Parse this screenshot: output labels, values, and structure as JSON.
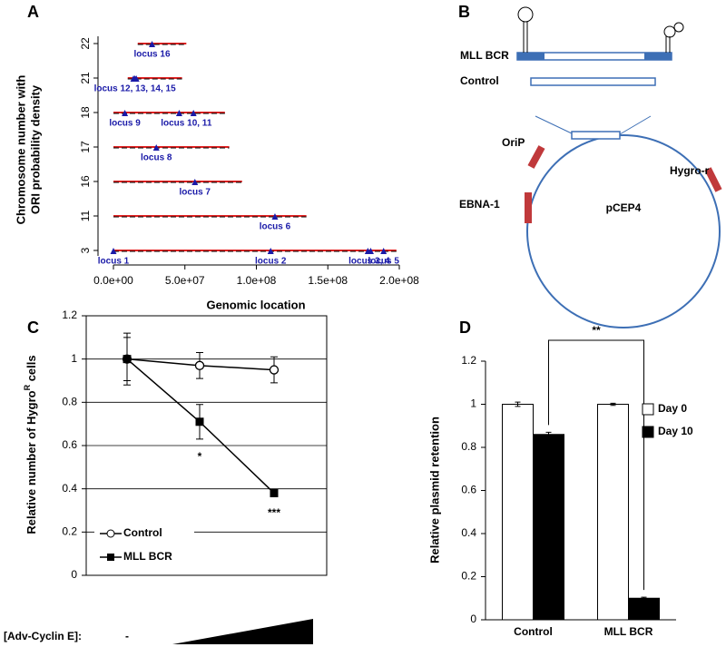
{
  "chart_data": [
    {
      "type": "scatter",
      "panel": "A",
      "y_label_lines": [
        "Chromosome number with",
        "ORI probability density"
      ],
      "x_label": "Genomic location",
      "categories": [
        "22",
        "21",
        "18",
        "17",
        "16",
        "11",
        "3"
      ],
      "chromosome_spans": [
        [
          17000000,
          51000000
        ],
        [
          10000000,
          48000000
        ],
        [
          0,
          78000000
        ],
        [
          0,
          81000000
        ],
        [
          0,
          90000000
        ],
        [
          0,
          135000000
        ],
        [
          0,
          198000000
        ]
      ],
      "trace_color": "#e02020",
      "locus_color": "#1a1aa8",
      "loci": [
        {
          "label": "locus 16",
          "chromosome": "22",
          "x": [
            27000000
          ]
        },
        {
          "label": "locus 12, 13, 14, 15",
          "chromosome": "21",
          "x": [
            14000000,
            15000000,
            16000000
          ]
        },
        {
          "label": "locus 9",
          "chromosome": "18",
          "x": [
            8000000
          ]
        },
        {
          "label": "locus 10, 11",
          "chromosome": "18",
          "x": [
            46000000,
            56000000
          ]
        },
        {
          "label": "locus 8",
          "chromosome": "17",
          "x": [
            30000000
          ]
        },
        {
          "label": "locus 7",
          "chromosome": "16",
          "x": [
            57000000
          ]
        },
        {
          "label": "locus 6",
          "chromosome": "11",
          "x": [
            113000000
          ]
        },
        {
          "label": "locus 1",
          "chromosome": "3",
          "x": [
            0
          ]
        },
        {
          "label": "locus 2",
          "chromosome": "3",
          "x": [
            110000000
          ]
        },
        {
          "label": "locus 3, 4",
          "chromosome": "3",
          "x": [
            178000000,
            180000000
          ]
        },
        {
          "label": "locus 5",
          "chromosome": "3",
          "x": [
            189000000
          ]
        }
      ],
      "xlim": [
        0,
        200000000
      ],
      "xticks": [
        {
          "value": 0,
          "label": "0.0e+00"
        },
        {
          "value": 50000000,
          "label": "5.0e+07"
        },
        {
          "value": 100000000,
          "label": "1.0e+08"
        },
        {
          "value": 150000000,
          "label": "1.5e+08"
        },
        {
          "value": 200000000,
          "label": "2.0e+08"
        }
      ]
    },
    {
      "type": "line",
      "panel": "C",
      "y_label": "Relative number of Hygro",
      "y_label_sup": "R",
      "y_label_end": " cells",
      "x_label": "[Adv-Cyclin E]:",
      "categories": [
        "-",
        null,
        null
      ],
      "series": [
        {
          "name": "Control",
          "color": "#000000",
          "marker": "open",
          "values": [
            1,
            0.97,
            0.95
          ],
          "errors": [
            0.12,
            0.06,
            0.06
          ]
        },
        {
          "name": "MLL BCR",
          "color": "#000000",
          "marker": "filled",
          "values": [
            1,
            0.71,
            0.38
          ],
          "errors": [
            0.1,
            0.08,
            0.01
          ]
        }
      ],
      "significance": [
        null,
        "*",
        "***"
      ],
      "ylim": [
        0,
        1.2
      ],
      "yticks": [
        0,
        0.2,
        0.4,
        0.6,
        0.8,
        1,
        1.2
      ],
      "grid": true
    },
    {
      "type": "bar",
      "panel": "D",
      "y_label": "Relative plasmid retention",
      "categories": [
        "Control",
        "MLL BCR"
      ],
      "series": [
        {
          "name": "Day 0",
          "color": "#ffffff",
          "values": [
            1,
            1
          ],
          "errors": [
            0.01,
            0.005
          ]
        },
        {
          "name": "Day 10",
          "color": "#000000",
          "values": [
            0.86,
            0.1
          ],
          "errors": [
            0.01,
            0.005
          ]
        }
      ],
      "significance": "**",
      "ylim": [
        0,
        1.2
      ],
      "yticks": [
        0,
        0.2,
        0.4,
        0.6,
        0.8,
        1,
        1.2
      ]
    }
  ],
  "diagram": {
    "panel": "B",
    "insert_label": "MLL BCR",
    "control_label": "Control",
    "elements": [
      "OriP",
      "Hygro-r",
      "EBNA-1"
    ],
    "plasmid": "pCEP4"
  }
}
